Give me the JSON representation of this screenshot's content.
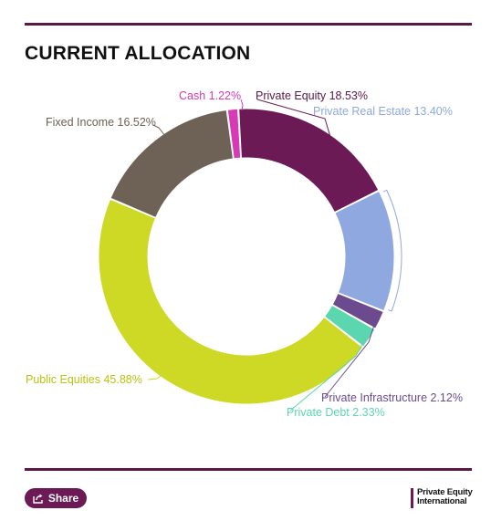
{
  "header": {
    "title": "CURRENT ALLOCATION"
  },
  "chart_data": {
    "type": "pie",
    "donut": true,
    "legend": "none",
    "slices": [
      {
        "label": "Private Equity",
        "value": 18.53,
        "display": "18.53%",
        "color": "#6b1a56"
      },
      {
        "label": "Private Real Estate",
        "value": 13.4,
        "display": "13.40%",
        "color": "#8fa8e0"
      },
      {
        "label": "Private Infrastructure",
        "value": 2.12,
        "display": "2.12%",
        "color": "#6b4a8e"
      },
      {
        "label": "Private Debt",
        "value": 2.33,
        "display": "2.33%",
        "color": "#5bd6ae"
      },
      {
        "label": "Public Equities",
        "value": 45.88,
        "display": "45.88%",
        "color": "#cdd925"
      },
      {
        "label": "Fixed Income",
        "value": 16.52,
        "display": "16.52%",
        "color": "#6e6155"
      },
      {
        "label": "Cash",
        "value": 1.22,
        "display": "1.22%",
        "color": "#d63ab4"
      }
    ]
  },
  "footer": {
    "share_label": "Share",
    "brand_line1": "Private Equity",
    "brand_line2": "International",
    "brand_color": "#6b1a56"
  }
}
